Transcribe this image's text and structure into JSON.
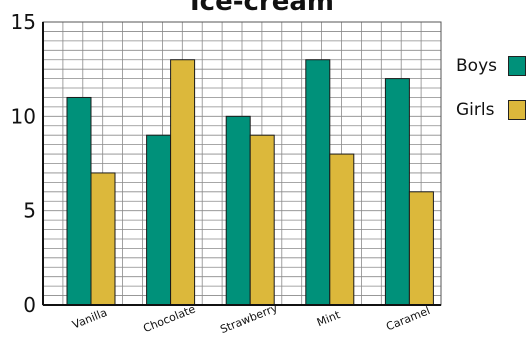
{
  "chart_data": {
    "type": "bar",
    "title": "Ice-cream",
    "categories": [
      "Vanilla",
      "Chocolate",
      "Strawberry",
      "Mint",
      "Caramel"
    ],
    "series": [
      {
        "name": "Boys",
        "values": [
          11,
          9,
          10,
          13,
          12
        ],
        "color": "#00917a"
      },
      {
        "name": "Girls",
        "values": [
          7,
          13,
          9,
          8,
          6
        ],
        "color": "#dcb83b"
      }
    ],
    "ylim": [
      0,
      15
    ],
    "yticks": [
      "0",
      "5",
      "10",
      "15"
    ],
    "grid": true,
    "legend_position": "right"
  }
}
